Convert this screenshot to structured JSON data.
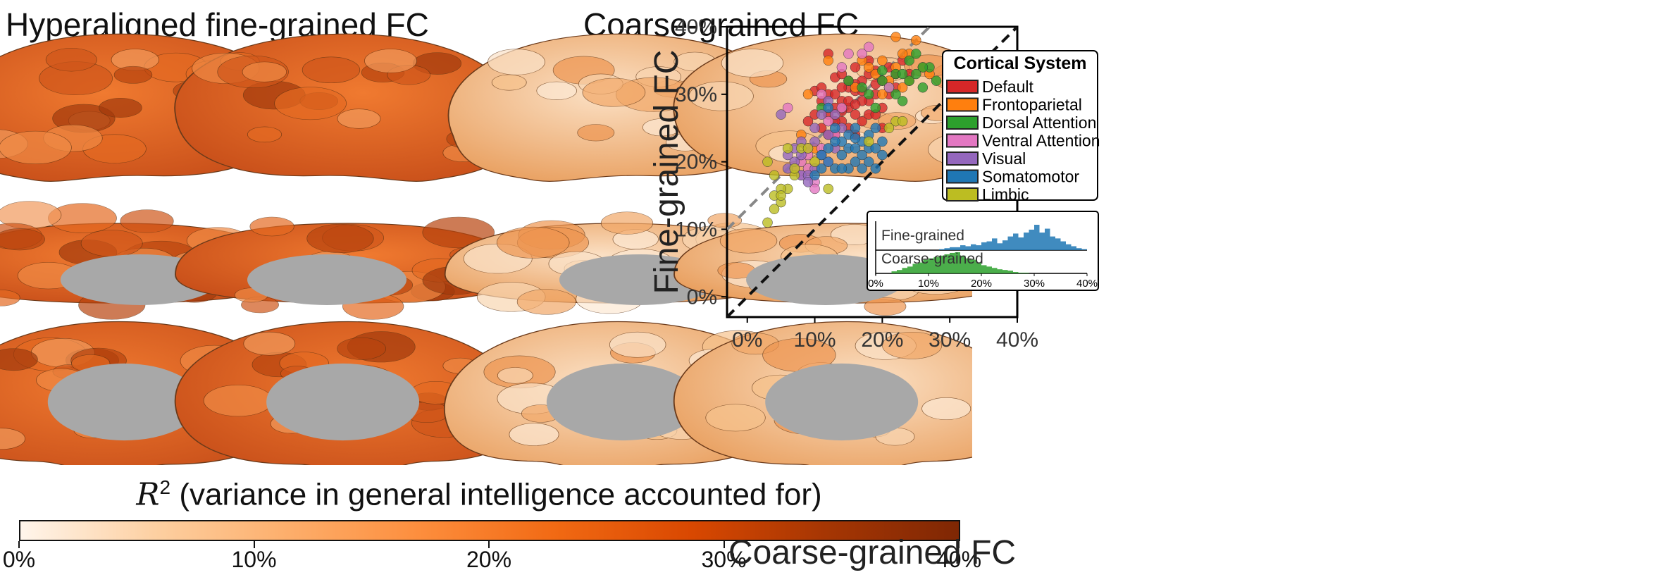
{
  "panels": {
    "left_title": "Hyperaligned fine-grained FC",
    "middle_title": "Coarse-grained FC"
  },
  "colorbar": {
    "title_symbol": "R",
    "title_exponent": "2",
    "title_text": "(variance in general intelligence accounted for)",
    "ticks": [
      "0%",
      "10%",
      "20%",
      "30%",
      "40%"
    ],
    "cmap": [
      "#fff5eb",
      "#fdd0a2",
      "#fdae6b",
      "#fd8d3c",
      "#f16913",
      "#d94801",
      "#a63603",
      "#7f2704"
    ],
    "range": [
      0,
      40
    ]
  },
  "brain_colors": {
    "fine_grained": "#e8631c",
    "coarse_grained": "#f6c594",
    "medial_wall": "#a8a8a8"
  },
  "chart_data": {
    "type": "scatter",
    "xlabel": "Coarse-grained FC",
    "ylabel": "Fine-grained FC",
    "xlim": [
      -3,
      40
    ],
    "ylim": [
      -3,
      40
    ],
    "xticks": [
      "0%",
      "10%",
      "20%",
      "30%",
      "40%"
    ],
    "yticks": [
      "0%",
      "10%",
      "20%",
      "30%",
      "40%"
    ],
    "grid": false,
    "legend": {
      "title": "Cortical System",
      "placement": "top-right"
    },
    "series": [
      {
        "name": "Default",
        "color": "#d62728",
        "points": [
          [
            10,
            30.5
          ],
          [
            11,
            31
          ],
          [
            12,
            30
          ],
          [
            13,
            32.5
          ],
          [
            14,
            33
          ],
          [
            15,
            31
          ],
          [
            16,
            30.5
          ],
          [
            17,
            32
          ],
          [
            18,
            33
          ],
          [
            19,
            31.5
          ],
          [
            20,
            32
          ],
          [
            21,
            34
          ],
          [
            22,
            33
          ],
          [
            23,
            35
          ],
          [
            12,
            27
          ],
          [
            13,
            28
          ],
          [
            14,
            29
          ],
          [
            15,
            28
          ],
          [
            16,
            27
          ],
          [
            17,
            26
          ],
          [
            18,
            29
          ],
          [
            19,
            30
          ],
          [
            20,
            28
          ],
          [
            14,
            26
          ],
          [
            15,
            25
          ],
          [
            16,
            24
          ],
          [
            13,
            24
          ],
          [
            11,
            25
          ],
          [
            12,
            24
          ],
          [
            17,
            29
          ],
          [
            18,
            27
          ],
          [
            19,
            27
          ],
          [
            13,
            30
          ],
          [
            15,
            29
          ],
          [
            16,
            28.5
          ],
          [
            14,
            31
          ],
          [
            12,
            36
          ],
          [
            16,
            34
          ],
          [
            18,
            35
          ],
          [
            21,
            30
          ],
          [
            10,
            27
          ],
          [
            9,
            26
          ],
          [
            17,
            30.5
          ],
          [
            19,
            33.5
          ],
          [
            22,
            31
          ],
          [
            15,
            32
          ],
          [
            13,
            26
          ],
          [
            20,
            25
          ],
          [
            11,
            29
          ],
          [
            24,
            33
          ],
          [
            16,
            31.5
          ],
          [
            14,
            27.5
          ]
        ]
      },
      {
        "name": "Frontoparietal",
        "color": "#ff7f0e",
        "points": [
          [
            20,
            35
          ],
          [
            22,
            34
          ],
          [
            24,
            36
          ],
          [
            26,
            34
          ],
          [
            25,
            38
          ],
          [
            27,
            33
          ],
          [
            21,
            32
          ],
          [
            23,
            31
          ],
          [
            19,
            33
          ],
          [
            18,
            34
          ],
          [
            17,
            35
          ],
          [
            22,
            38.5
          ],
          [
            24,
            32
          ],
          [
            12,
            35
          ],
          [
            9,
            30
          ],
          [
            8,
            24
          ],
          [
            10,
            22
          ],
          [
            16,
            31
          ],
          [
            20,
            30
          ],
          [
            23,
            36
          ]
        ]
      },
      {
        "name": "Dorsal Attention",
        "color": "#2ca02c",
        "points": [
          [
            20,
            32
          ],
          [
            22,
            33
          ],
          [
            24,
            32
          ],
          [
            25,
            33
          ],
          [
            26,
            31
          ],
          [
            27,
            34
          ],
          [
            25,
            36
          ],
          [
            18,
            30
          ],
          [
            21,
            31
          ],
          [
            23,
            33
          ],
          [
            24,
            35
          ],
          [
            22,
            30
          ],
          [
            19,
            28
          ],
          [
            26,
            34
          ],
          [
            28,
            32
          ],
          [
            17,
            31
          ],
          [
            11,
            28
          ],
          [
            15,
            32
          ],
          [
            20,
            33.5
          ],
          [
            23,
            29
          ]
        ]
      },
      {
        "name": "Ventral Attention",
        "color": "#e377c2",
        "points": [
          [
            8,
            18
          ],
          [
            9,
            19
          ],
          [
            10,
            17
          ],
          [
            9,
            21
          ],
          [
            11,
            22
          ],
          [
            13,
            24
          ],
          [
            8,
            20
          ],
          [
            7,
            19
          ],
          [
            12,
            26
          ],
          [
            14,
            28
          ],
          [
            15,
            36
          ],
          [
            18,
            37
          ],
          [
            21,
            31
          ],
          [
            6,
            28
          ],
          [
            10,
            16
          ],
          [
            11,
            30
          ],
          [
            14,
            34
          ],
          [
            17,
            36
          ],
          [
            9,
            22
          ],
          [
            12,
            20
          ]
        ]
      },
      {
        "name": "Visual",
        "color": "#9467bd",
        "points": [
          [
            6,
            21
          ],
          [
            7,
            20
          ],
          [
            8,
            18
          ],
          [
            9,
            18
          ],
          [
            7,
            22
          ],
          [
            8,
            21
          ],
          [
            10,
            23
          ],
          [
            11,
            21
          ],
          [
            12,
            24
          ],
          [
            10,
            25
          ],
          [
            5,
            27
          ],
          [
            9,
            17
          ],
          [
            13,
            22
          ],
          [
            14,
            25
          ],
          [
            11,
            27
          ],
          [
            6,
            19
          ],
          [
            12,
            29
          ],
          [
            13,
            27
          ],
          [
            10,
            19
          ],
          [
            8,
            23
          ]
        ]
      },
      {
        "name": "Somatomotor",
        "color": "#1f77b4",
        "points": [
          [
            10,
            18
          ],
          [
            11,
            19
          ],
          [
            12,
            20
          ],
          [
            13,
            19
          ],
          [
            14,
            21
          ],
          [
            15,
            19
          ],
          [
            16,
            20
          ],
          [
            17,
            21
          ],
          [
            18,
            20
          ],
          [
            19,
            19
          ],
          [
            14,
            23
          ],
          [
            15,
            24
          ],
          [
            16,
            25
          ],
          [
            17,
            23
          ],
          [
            18,
            24
          ],
          [
            19,
            25
          ],
          [
            20,
            23
          ],
          [
            12,
            22
          ],
          [
            13,
            23
          ],
          [
            15,
            22
          ],
          [
            16,
            22
          ],
          [
            17,
            19
          ],
          [
            18,
            22
          ],
          [
            11,
            21
          ],
          [
            14,
            19
          ],
          [
            13,
            25
          ],
          [
            12,
            28
          ],
          [
            20,
            21
          ],
          [
            19,
            22
          ],
          [
            16,
            23.5
          ]
        ]
      },
      {
        "name": "Limbic",
        "color": "#bcbd22",
        "points": [
          [
            3,
            11
          ],
          [
            4,
            13
          ],
          [
            4,
            15
          ],
          [
            5,
            14
          ],
          [
            6,
            16
          ],
          [
            7,
            18
          ],
          [
            8,
            22
          ],
          [
            3,
            20
          ],
          [
            5,
            16
          ],
          [
            7,
            19
          ],
          [
            6,
            22
          ],
          [
            9,
            22
          ],
          [
            10,
            20
          ],
          [
            22,
            26
          ],
          [
            23,
            26
          ],
          [
            21,
            25
          ],
          [
            18,
            23
          ],
          [
            12,
            16
          ],
          [
            4,
            18
          ],
          [
            5,
            15
          ]
        ]
      }
    ],
    "reference_lines": [
      {
        "style": "black-dashed",
        "slope": 1,
        "intercept": 0
      },
      {
        "style": "gray-dashed",
        "slope": 1,
        "intercept": 13
      }
    ],
    "inset": {
      "type": "histogram",
      "xticks": [
        "0%",
        "10%",
        "20%",
        "30%",
        "40%"
      ],
      "xlim": [
        0,
        40
      ],
      "series": [
        {
          "name": "Fine-grained",
          "color": "#1f77b4",
          "bins": [
            12,
            13,
            14,
            15,
            16,
            17,
            18,
            19,
            20,
            21,
            22,
            23,
            24,
            25,
            26,
            27,
            28,
            29,
            30,
            31,
            32,
            33,
            34,
            35,
            36,
            37,
            38,
            39
          ],
          "counts": [
            1,
            2,
            3,
            3,
            5,
            4,
            6,
            5,
            8,
            9,
            12,
            7,
            10,
            14,
            17,
            13,
            18,
            21,
            26,
            18,
            22,
            14,
            12,
            9,
            6,
            4,
            2,
            1
          ]
        },
        {
          "name": "Coarse-grained",
          "color": "#2ca02c",
          "bins": [
            3,
            4,
            5,
            6,
            7,
            8,
            9,
            10,
            11,
            12,
            13,
            14,
            15,
            16,
            17,
            18,
            19,
            20,
            21,
            22,
            23,
            24,
            25,
            26,
            27,
            28
          ],
          "counts": [
            3,
            5,
            8,
            10,
            14,
            16,
            20,
            22,
            24,
            26,
            28,
            30,
            31,
            26,
            22,
            20,
            16,
            12,
            10,
            8,
            6,
            5,
            4,
            2,
            1,
            1
          ]
        }
      ]
    }
  }
}
